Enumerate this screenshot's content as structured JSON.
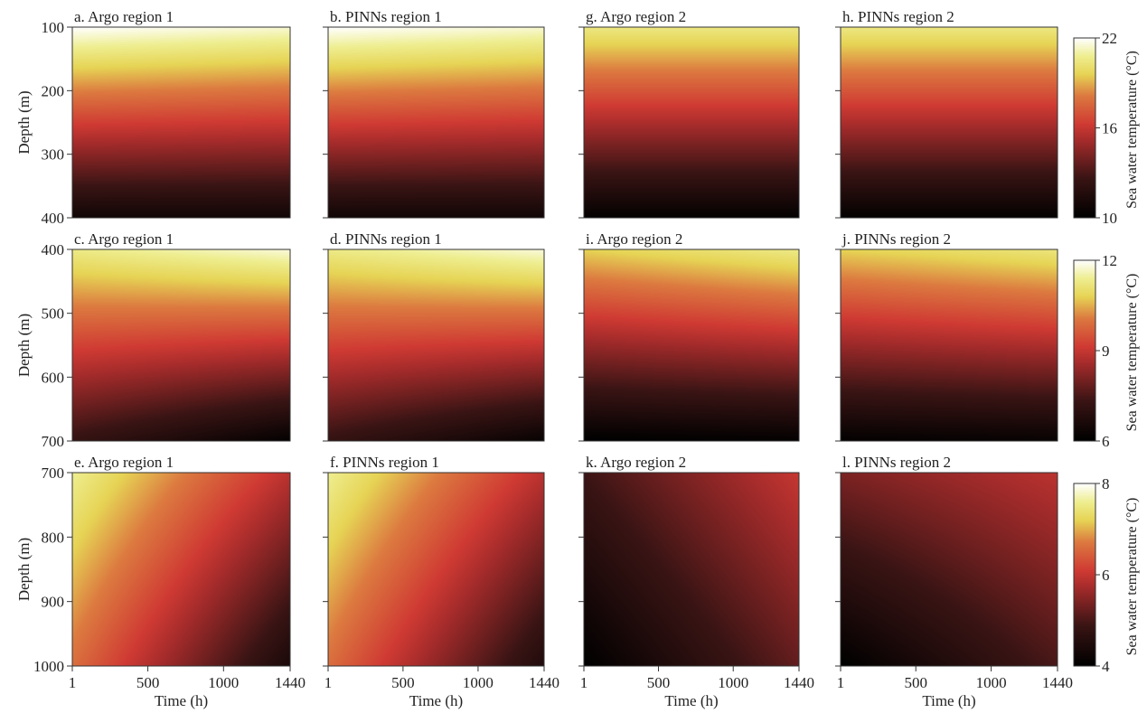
{
  "chart_data": {
    "type": "heatmap",
    "xlabel": "Time (h)",
    "ylabel": "Depth (m)",
    "x_ticks": [
      1,
      500,
      1000,
      1440
    ],
    "xlim": [
      1,
      1440
    ],
    "colorbar_label": "Sea water temperature (°C)",
    "colormap_stops": [
      [
        0,
        "#000000"
      ],
      [
        0.22,
        "#3a1414"
      ],
      [
        0.42,
        "#a02a2a"
      ],
      [
        0.52,
        "#cf3a33"
      ],
      [
        0.68,
        "#dc7a40"
      ],
      [
        0.8,
        "#e6d455"
      ],
      [
        0.9,
        "#eeee90"
      ],
      [
        1,
        "#ffffff"
      ]
    ],
    "rows": [
      {
        "ylim": [
          100,
          400
        ],
        "y_ticks": [
          100,
          200,
          300,
          400
        ],
        "clim": [
          10,
          22
        ],
        "cbar_ticks": [
          10,
          16,
          22
        ],
        "panels": [
          {
            "title": "a. Argo region 1",
            "corners": {
              "top_left": 22,
              "top_right": 21.5,
              "bottom_left": 10.8,
              "bottom_right": 10.8
            }
          },
          {
            "title": "b. PINNs region 1",
            "corners": {
              "top_left": 22,
              "top_right": 21.5,
              "bottom_left": 10.8,
              "bottom_right": 10.8
            }
          },
          {
            "title": "g. Argo region 2",
            "corners": {
              "top_left": 20.5,
              "top_right": 20.5,
              "bottom_left": 10.2,
              "bottom_right": 10.2
            }
          },
          {
            "title": "h. PINNs region 2",
            "corners": {
              "top_left": 20.5,
              "top_right": 20.5,
              "bottom_left": 10.2,
              "bottom_right": 10.2
            }
          }
        ]
      },
      {
        "ylim": [
          400,
          700
        ],
        "y_ticks": [
          400,
          500,
          600,
          700
        ],
        "clim": [
          6,
          12
        ],
        "cbar_ticks": [
          6,
          9,
          12
        ],
        "panels": [
          {
            "title": "c. Argo region 1",
            "corners": {
              "top_left": 11.3,
              "top_right": 11.8,
              "bottom_left": 7.2,
              "bottom_right": 6.1
            }
          },
          {
            "title": "d. PINNs region 1",
            "corners": {
              "top_left": 11.3,
              "top_right": 11.8,
              "bottom_left": 7.2,
              "bottom_right": 6.2
            }
          },
          {
            "title": "i. Argo region 2",
            "corners": {
              "top_left": 10.8,
              "top_right": 11.3,
              "bottom_left": 6.0,
              "bottom_right": 6.1
            }
          },
          {
            "title": "j. PINNs region 2",
            "corners": {
              "top_left": 10.8,
              "top_right": 11.2,
              "bottom_left": 6.1,
              "bottom_right": 6.2
            }
          }
        ]
      },
      {
        "ylim": [
          700,
          1000
        ],
        "y_ticks": [
          700,
          800,
          900,
          1000
        ],
        "clim": [
          4,
          8
        ],
        "cbar_ticks": [
          4,
          6,
          8
        ],
        "panels": [
          {
            "title": "e. Argo region 1",
            "corners": {
              "top_left": 7.6,
              "top_right": 5.9,
              "bottom_left": 6.6,
              "bottom_right": 4.4
            }
          },
          {
            "title": "f. PINNs region 1",
            "corners": {
              "top_left": 7.6,
              "top_right": 5.9,
              "bottom_left": 6.6,
              "bottom_right": 4.5
            }
          },
          {
            "title": "k. Argo region 2",
            "corners": {
              "top_left": 4.9,
              "top_right": 6.0,
              "bottom_left": 4.0,
              "bottom_right": 5.2
            }
          },
          {
            "title": "l. PINNs region 2",
            "corners": {
              "top_left": 5.4,
              "top_right": 5.9,
              "bottom_left": 4.0,
              "bottom_right": 5.0
            }
          }
        ]
      }
    ]
  }
}
